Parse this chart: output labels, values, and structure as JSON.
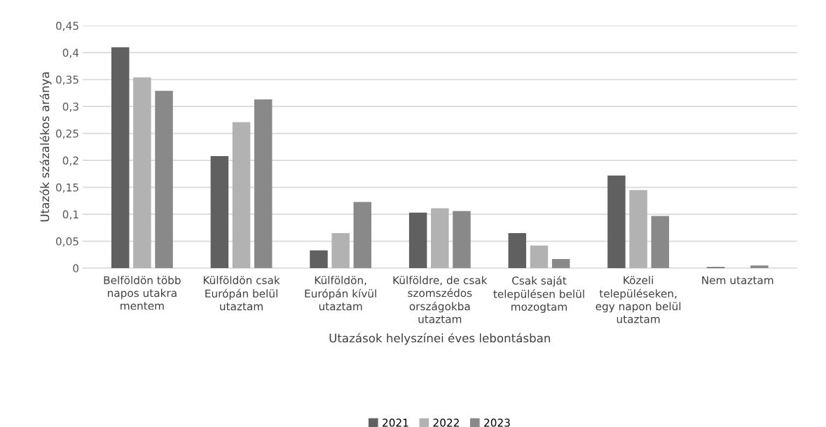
{
  "chart_data": {
    "type": "bar",
    "xlabel": "Utazások helyszínei éves lebontásban",
    "ylabel": "Utazók százalékos aránya",
    "categories": [
      "Belföldön több\nnapos utakra\nmentem",
      "Külföldön csak\nEurópán belül\nutaztam",
      "Külföldön,\nEurópán kívül\nutaztam",
      "Külföldre, de csak\nszomszédos\nországokba\nutaztam",
      "Csak saját\ntelepülésen belül\nmozogtam",
      "Közeli\ntelepüléseken,\negy napon belül\nutaztam",
      "Nem utaztam"
    ],
    "series": [
      {
        "name": "2021",
        "color": "#606060",
        "values": [
          0.41,
          0.208,
          0.033,
          0.103,
          0.065,
          0.172,
          0.002
        ]
      },
      {
        "name": "2022",
        "color": "#b2b2b2",
        "values": [
          0.354,
          0.271,
          0.065,
          0.111,
          0.042,
          0.145,
          0
        ]
      },
      {
        "name": "2023",
        "color": "#898989",
        "values": [
          0.329,
          0.313,
          0.123,
          0.106,
          0.017,
          0.097,
          0.005
        ]
      }
    ],
    "ylim": [
      0,
      0.45
    ],
    "yticks": [
      {
        "value": 0,
        "label": "0"
      },
      {
        "value": 0.05,
        "label": "0,05"
      },
      {
        "value": 0.1,
        "label": "0,1"
      },
      {
        "value": 0.15,
        "label": "0,15"
      },
      {
        "value": 0.2,
        "label": "0,2"
      },
      {
        "value": 0.25,
        "label": "0,25"
      },
      {
        "value": 0.3,
        "label": "0,3"
      },
      {
        "value": 0.35,
        "label": "0,35"
      },
      {
        "value": 0.4,
        "label": "0,4"
      },
      {
        "value": 0.45,
        "label": "0,45"
      }
    ],
    "grid": "y",
    "legend": "bottom"
  }
}
